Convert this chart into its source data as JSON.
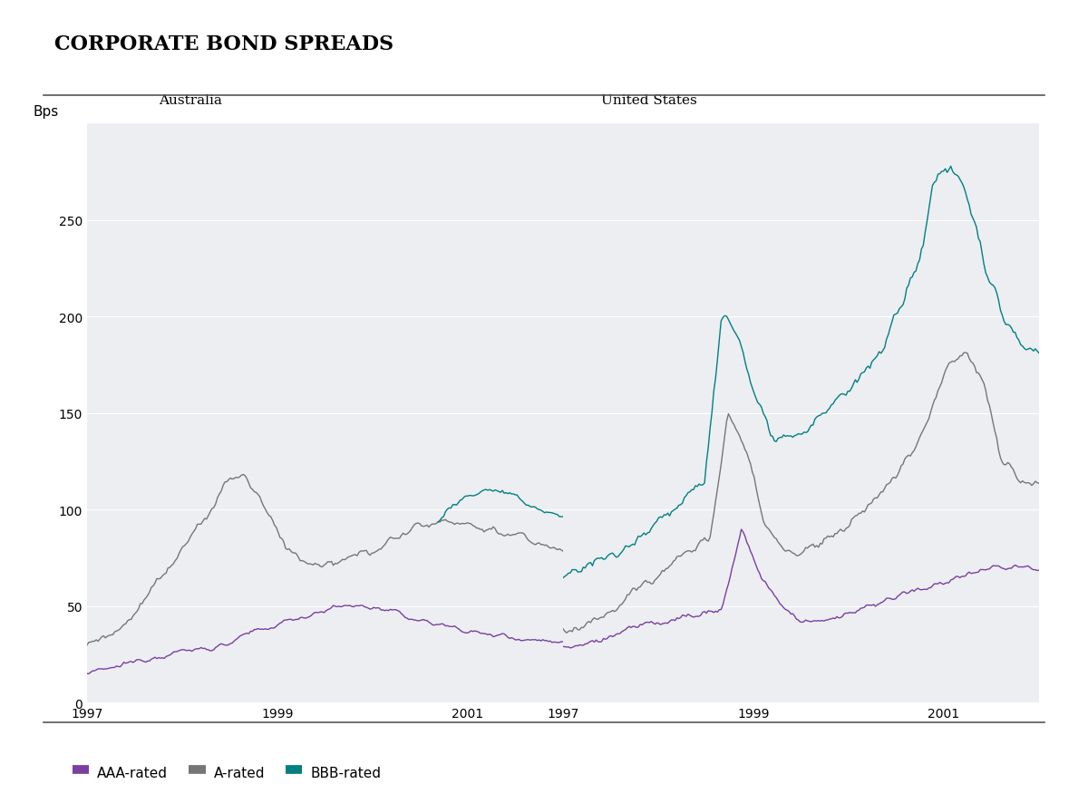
{
  "title": "CORPORATE BOND SPREADS",
  "ylabel": "Bps",
  "panel_titles": [
    "Australia",
    "United States"
  ],
  "ylim": [
    0,
    300
  ],
  "yticks": [
    0,
    50,
    100,
    150,
    200,
    250
  ],
  "colors": {
    "AAA": "#7B3FA0",
    "A": "#767676",
    "BBB": "#008080"
  },
  "legend_labels": [
    "AAA-rated",
    "A-rated",
    "BBB-rated"
  ],
  "background_color": "#ffffff",
  "panel_bg": "#ECEEF2",
  "title_fontsize": 16,
  "label_fontsize": 11,
  "tick_fontsize": 10,
  "line_width": 1.0
}
